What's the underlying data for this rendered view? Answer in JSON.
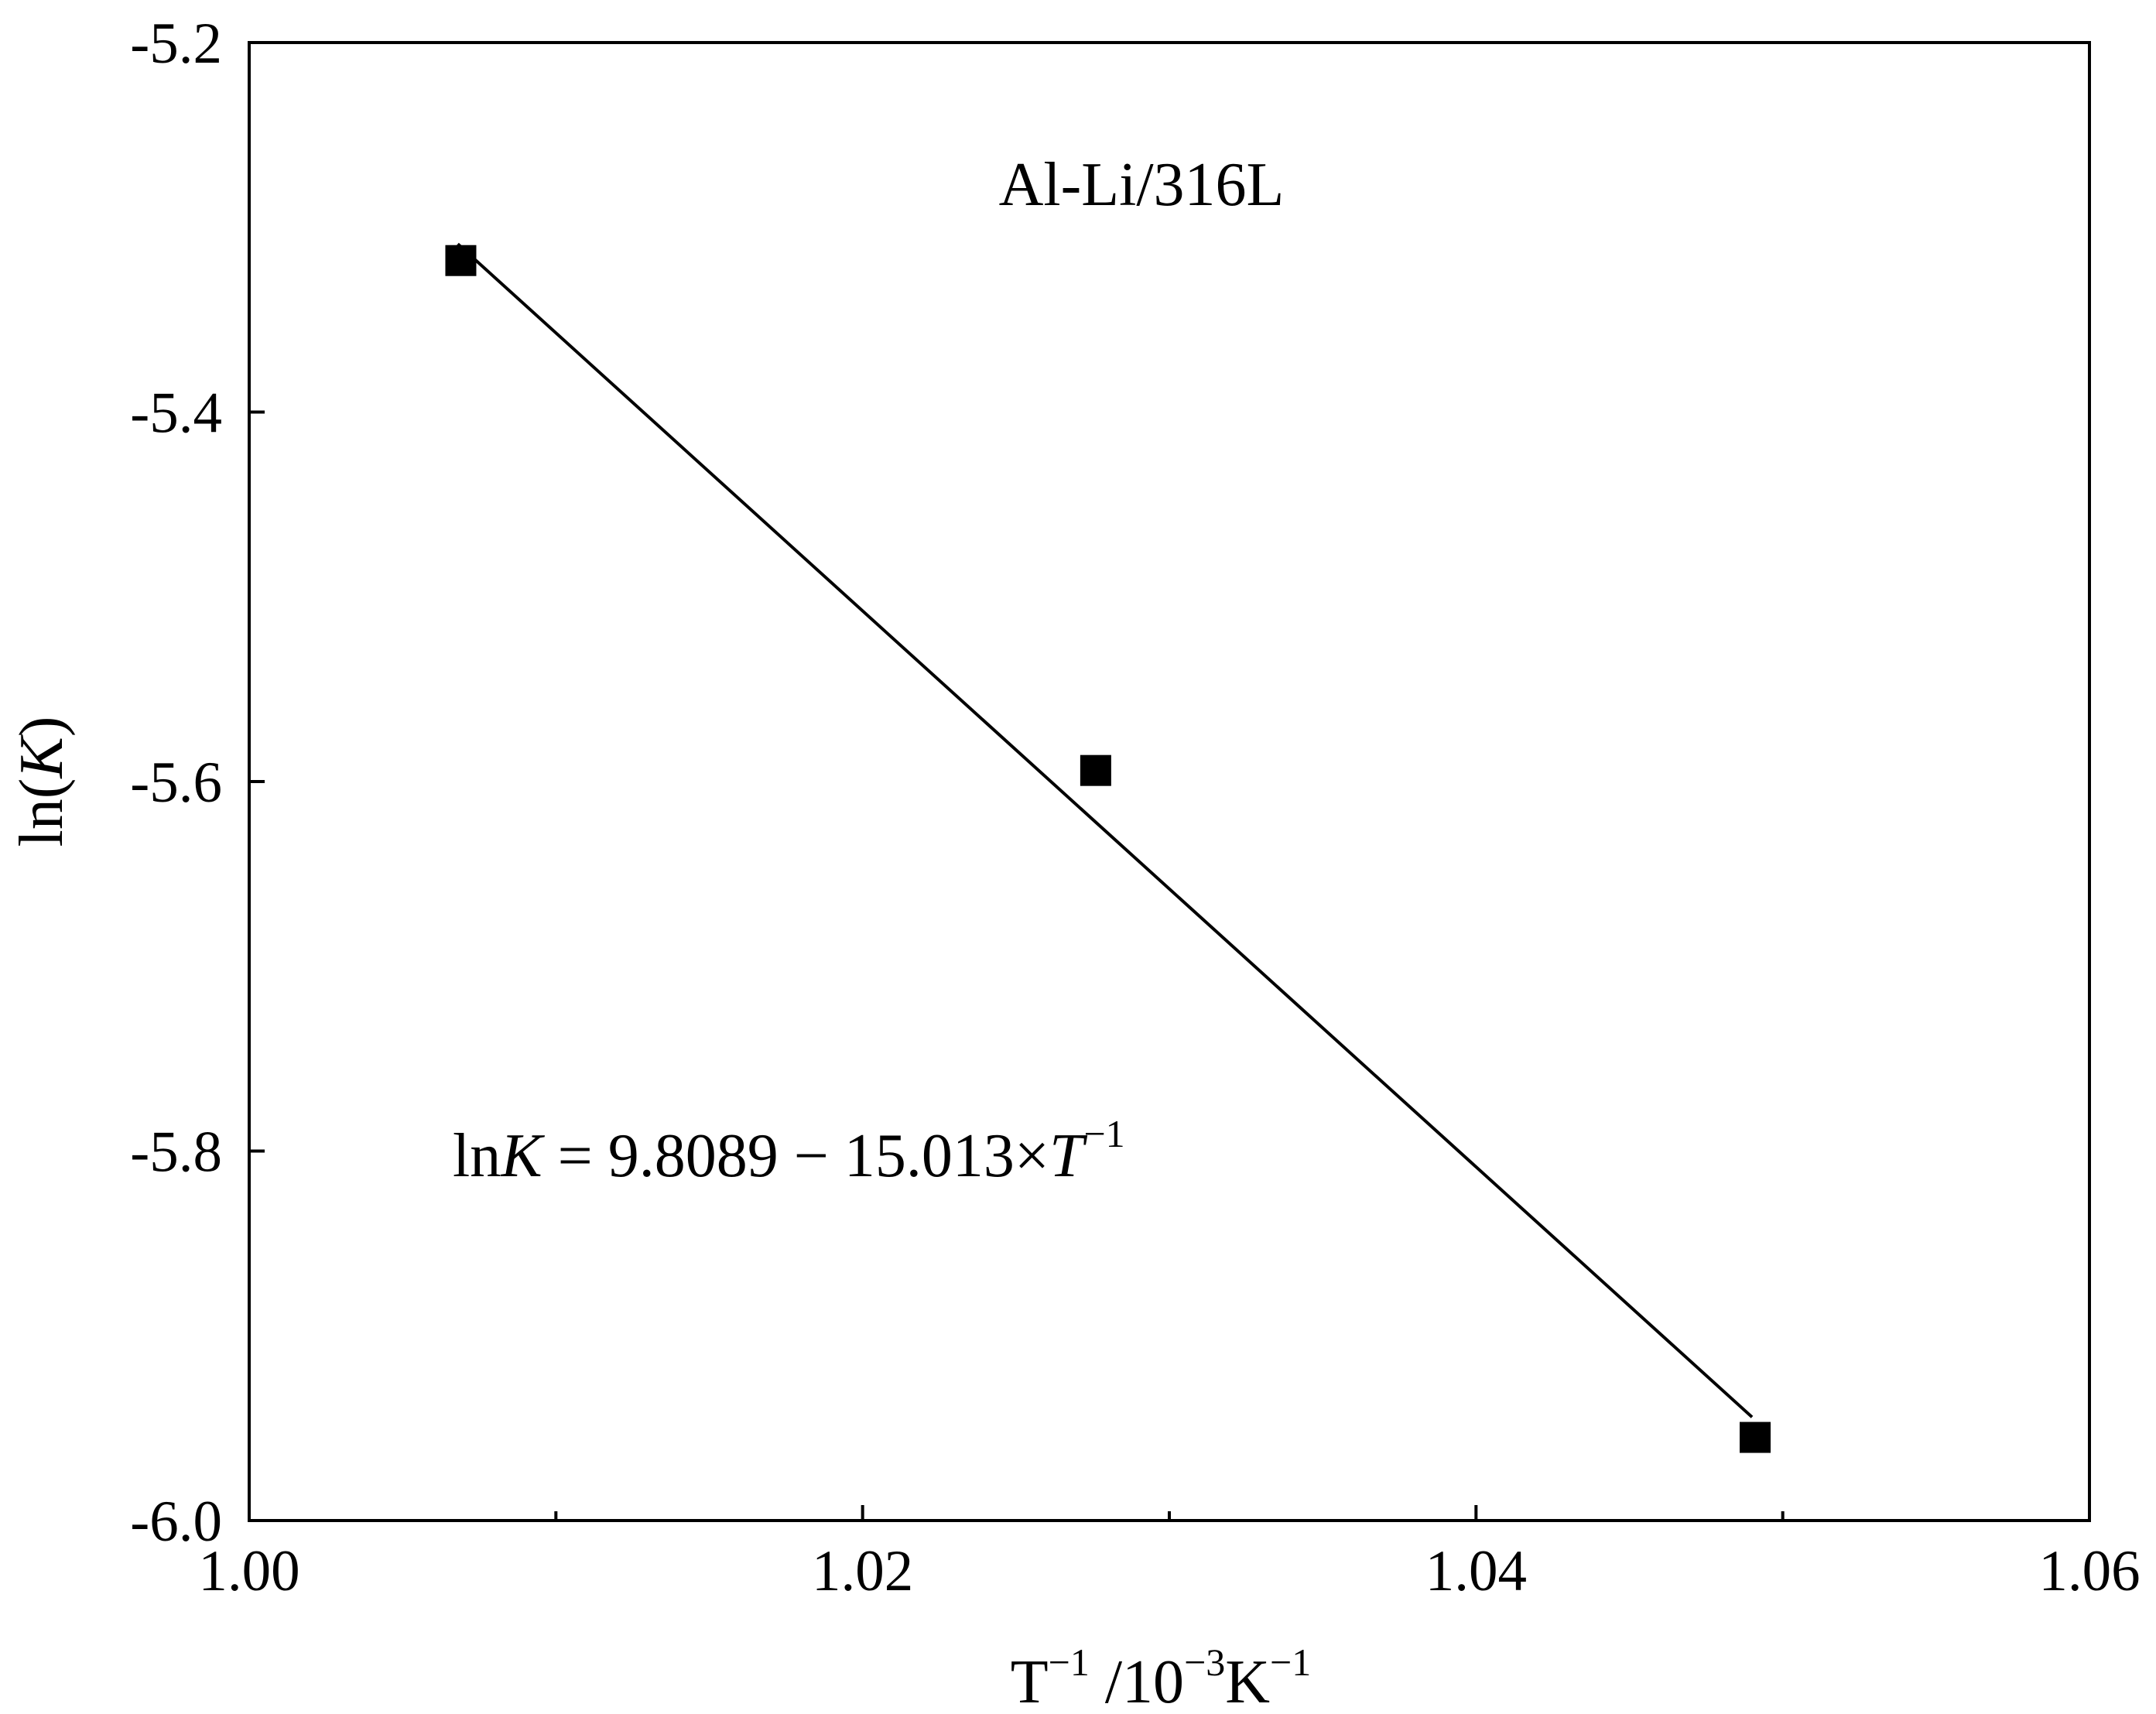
{
  "chart_data": {
    "type": "scatter",
    "title": "",
    "panel_label": "Al-Li/316L",
    "xlabel": {
      "base": "T",
      "sup1": "−1",
      "middle": " /10",
      "sup2": "−3",
      "unit": "K",
      "sup3": "−1"
    },
    "ylabel": {
      "prefix": "ln(",
      "var": "K",
      "suffix": ")"
    },
    "xlim": [
      1.0,
      1.06
    ],
    "ylim": [
      -6.0,
      -5.2
    ],
    "x_ticks": [
      1.0,
      1.02,
      1.04,
      1.06
    ],
    "x_tick_labels": [
      "1.00",
      "1.02",
      "1.04",
      "1.06"
    ],
    "x_minor_ticks": [
      1.01,
      1.03,
      1.05
    ],
    "y_ticks": [
      -6.0,
      -5.8,
      -5.6,
      -5.4,
      -5.2
    ],
    "y_tick_labels": [
      "-6.0",
      "-5.8",
      "-5.6",
      "-5.4",
      "-5.2"
    ],
    "y_minor_ticks": [],
    "grid": false,
    "series": [
      {
        "marker": "square",
        "color": "#000000",
        "points": [
          {
            "x": 1.0069,
            "y": -5.318
          },
          {
            "x": 1.0276,
            "y": -5.594
          },
          {
            "x": 1.0491,
            "y": -5.955
          }
        ]
      }
    ],
    "fit_line": {
      "color": "#000000",
      "x_range": [
        1.0068,
        1.049
      ],
      "y_range": [
        -5.309,
        -5.944
      ]
    },
    "equation": {
      "prefix": "ln",
      "var1": "K",
      "middle": " = 9.8089 − 15.013×",
      "var2": "T",
      "sup": "−1"
    }
  }
}
